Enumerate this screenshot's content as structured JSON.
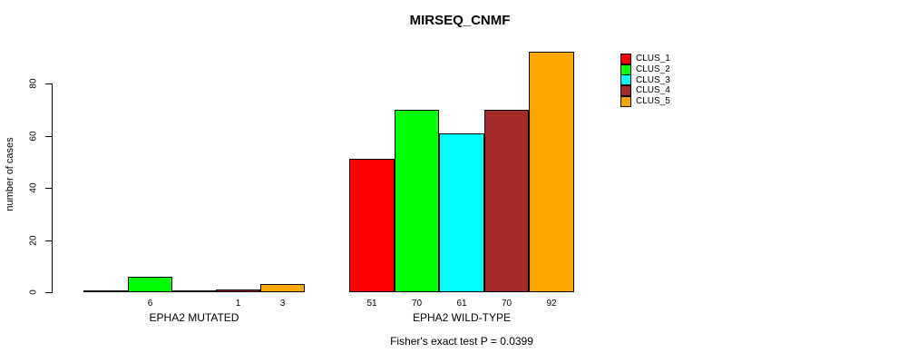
{
  "chart_data": {
    "type": "bar",
    "title": "MIRSEQ_CNMF",
    "subtitle": "Fisher's exact test P = 0.0399",
    "ylabel": "number of cases",
    "xlabel": "",
    "yticks": [
      0,
      20,
      40,
      60,
      80
    ],
    "ylim": [
      0,
      92
    ],
    "grid": false,
    "legend_position": "top-right",
    "series": [
      {
        "name": "CLUS_1",
        "color": "#FF0000"
      },
      {
        "name": "CLUS_2",
        "color": "#00FF00"
      },
      {
        "name": "CLUS_3",
        "color": "#00FFFF"
      },
      {
        "name": "CLUS_4",
        "color": "#A52A2A"
      },
      {
        "name": "CLUS_5",
        "color": "#FFA500"
      }
    ],
    "groups": [
      {
        "label": "EPHA2 MUTATED",
        "values": [
          0,
          6,
          0,
          1,
          3
        ],
        "bar_labels": [
          "",
          "6",
          "",
          "1",
          "3"
        ]
      },
      {
        "label": "EPHA2 WILD-TYPE",
        "values": [
          51,
          70,
          61,
          70,
          92
        ],
        "bar_labels": [
          "51",
          "70",
          "61",
          "70",
          "92"
        ]
      }
    ]
  }
}
